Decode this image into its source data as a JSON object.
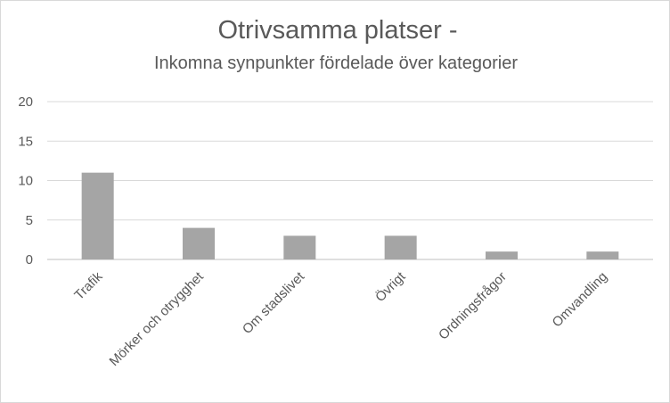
{
  "chart_data": {
    "type": "bar",
    "title": "Otrivsamma platser -",
    "subtitle": "Inkomna synpunkter fördelade över kategorier",
    "categories": [
      "Trafik",
      "Mörker och otrygghet",
      "Om stadslivet",
      "Övrigt",
      "Ordningsfrågor",
      "Omvandling"
    ],
    "values": [
      11,
      4,
      3,
      3,
      1,
      1
    ],
    "yticks": [
      "0",
      "5",
      "10",
      "15",
      "20"
    ],
    "ylim": [
      0,
      20
    ],
    "grid": true,
    "legend": "none",
    "bar_color": "#a5a5a5"
  }
}
